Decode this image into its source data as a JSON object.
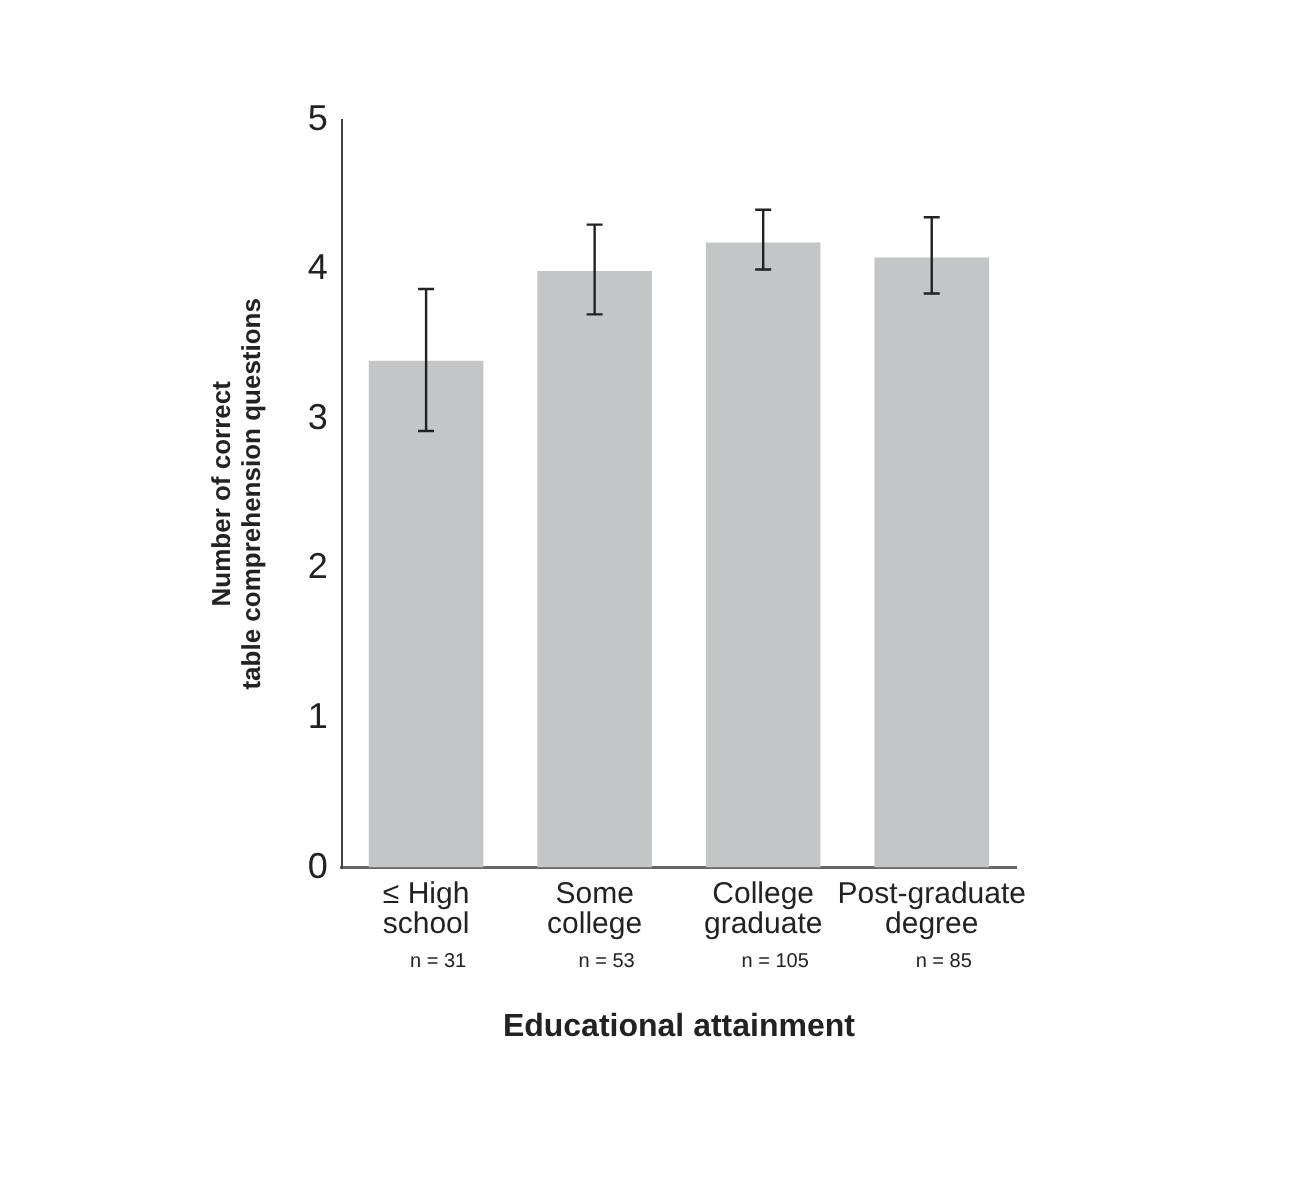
{
  "chart_data": {
    "type": "bar",
    "xlabel": "Educational attainment",
    "ylabel": "Number of correct table comprehension questions",
    "categories": [
      "≤ High school",
      "Some college",
      "College graduate",
      "Post-graduate degree"
    ],
    "values": [
      3.39,
      3.99,
      4.18,
      4.08
    ],
    "errors": [
      [
        2.92,
        3.87
      ],
      [
        3.7,
        4.3
      ],
      [
        4.0,
        4.4
      ],
      [
        3.84,
        4.35
      ]
    ],
    "color": "#c4c5c7",
    "ylim": [
      0,
      5
    ],
    "yticks": [
      0,
      1,
      2,
      3,
      4,
      5
    ],
    "grid": false,
    "legend": false,
    "annotations": [
      "n = 31",
      "n = 53",
      "n = 105",
      "n = 85"
    ]
  }
}
